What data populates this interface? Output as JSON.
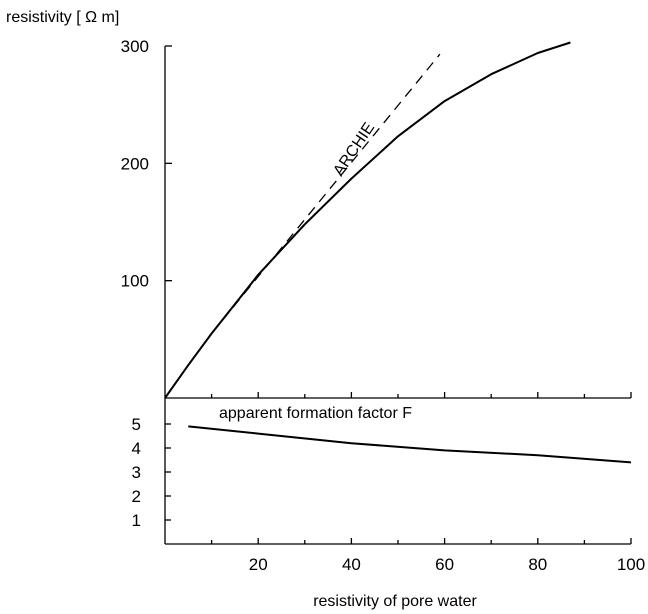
{
  "chart_data": [
    {
      "type": "line",
      "ylabel": "resistivity [ Ω m]",
      "xlim": [
        0,
        100
      ],
      "ylim": [
        0,
        300
      ],
      "y_ticks": [
        100,
        200,
        300
      ],
      "grid": false,
      "series": [
        {
          "style": "solid",
          "x": [
            0,
            5,
            10,
            20,
            30,
            40,
            50,
            60,
            70,
            80,
            87
          ],
          "y": [
            0,
            28,
            55,
            105,
            148,
            187,
            223,
            253,
            276,
            294,
            303
          ]
        },
        {
          "name": "ARCHIE",
          "style": "dashed",
          "x": [
            10,
            59
          ],
          "y": [
            55,
            293
          ]
        }
      ],
      "annotations": [
        "ARCHIE"
      ]
    },
    {
      "type": "line",
      "xlabel": "resistivity of pore water",
      "xlim": [
        0,
        100
      ],
      "ylim": [
        0,
        5.5
      ],
      "x_ticks": [
        20,
        40,
        60,
        80,
        100
      ],
      "y_ticks": [
        1,
        2,
        3,
        4,
        5
      ],
      "grid": false,
      "series": [
        {
          "name": "apparent formation factor F",
          "style": "solid",
          "x": [
            5,
            20,
            40,
            60,
            80,
            100
          ],
          "y": [
            4.9,
            4.6,
            4.2,
            3.9,
            3.7,
            3.4
          ]
        }
      ],
      "annotations": [
        "apparent formation factor F"
      ]
    }
  ]
}
